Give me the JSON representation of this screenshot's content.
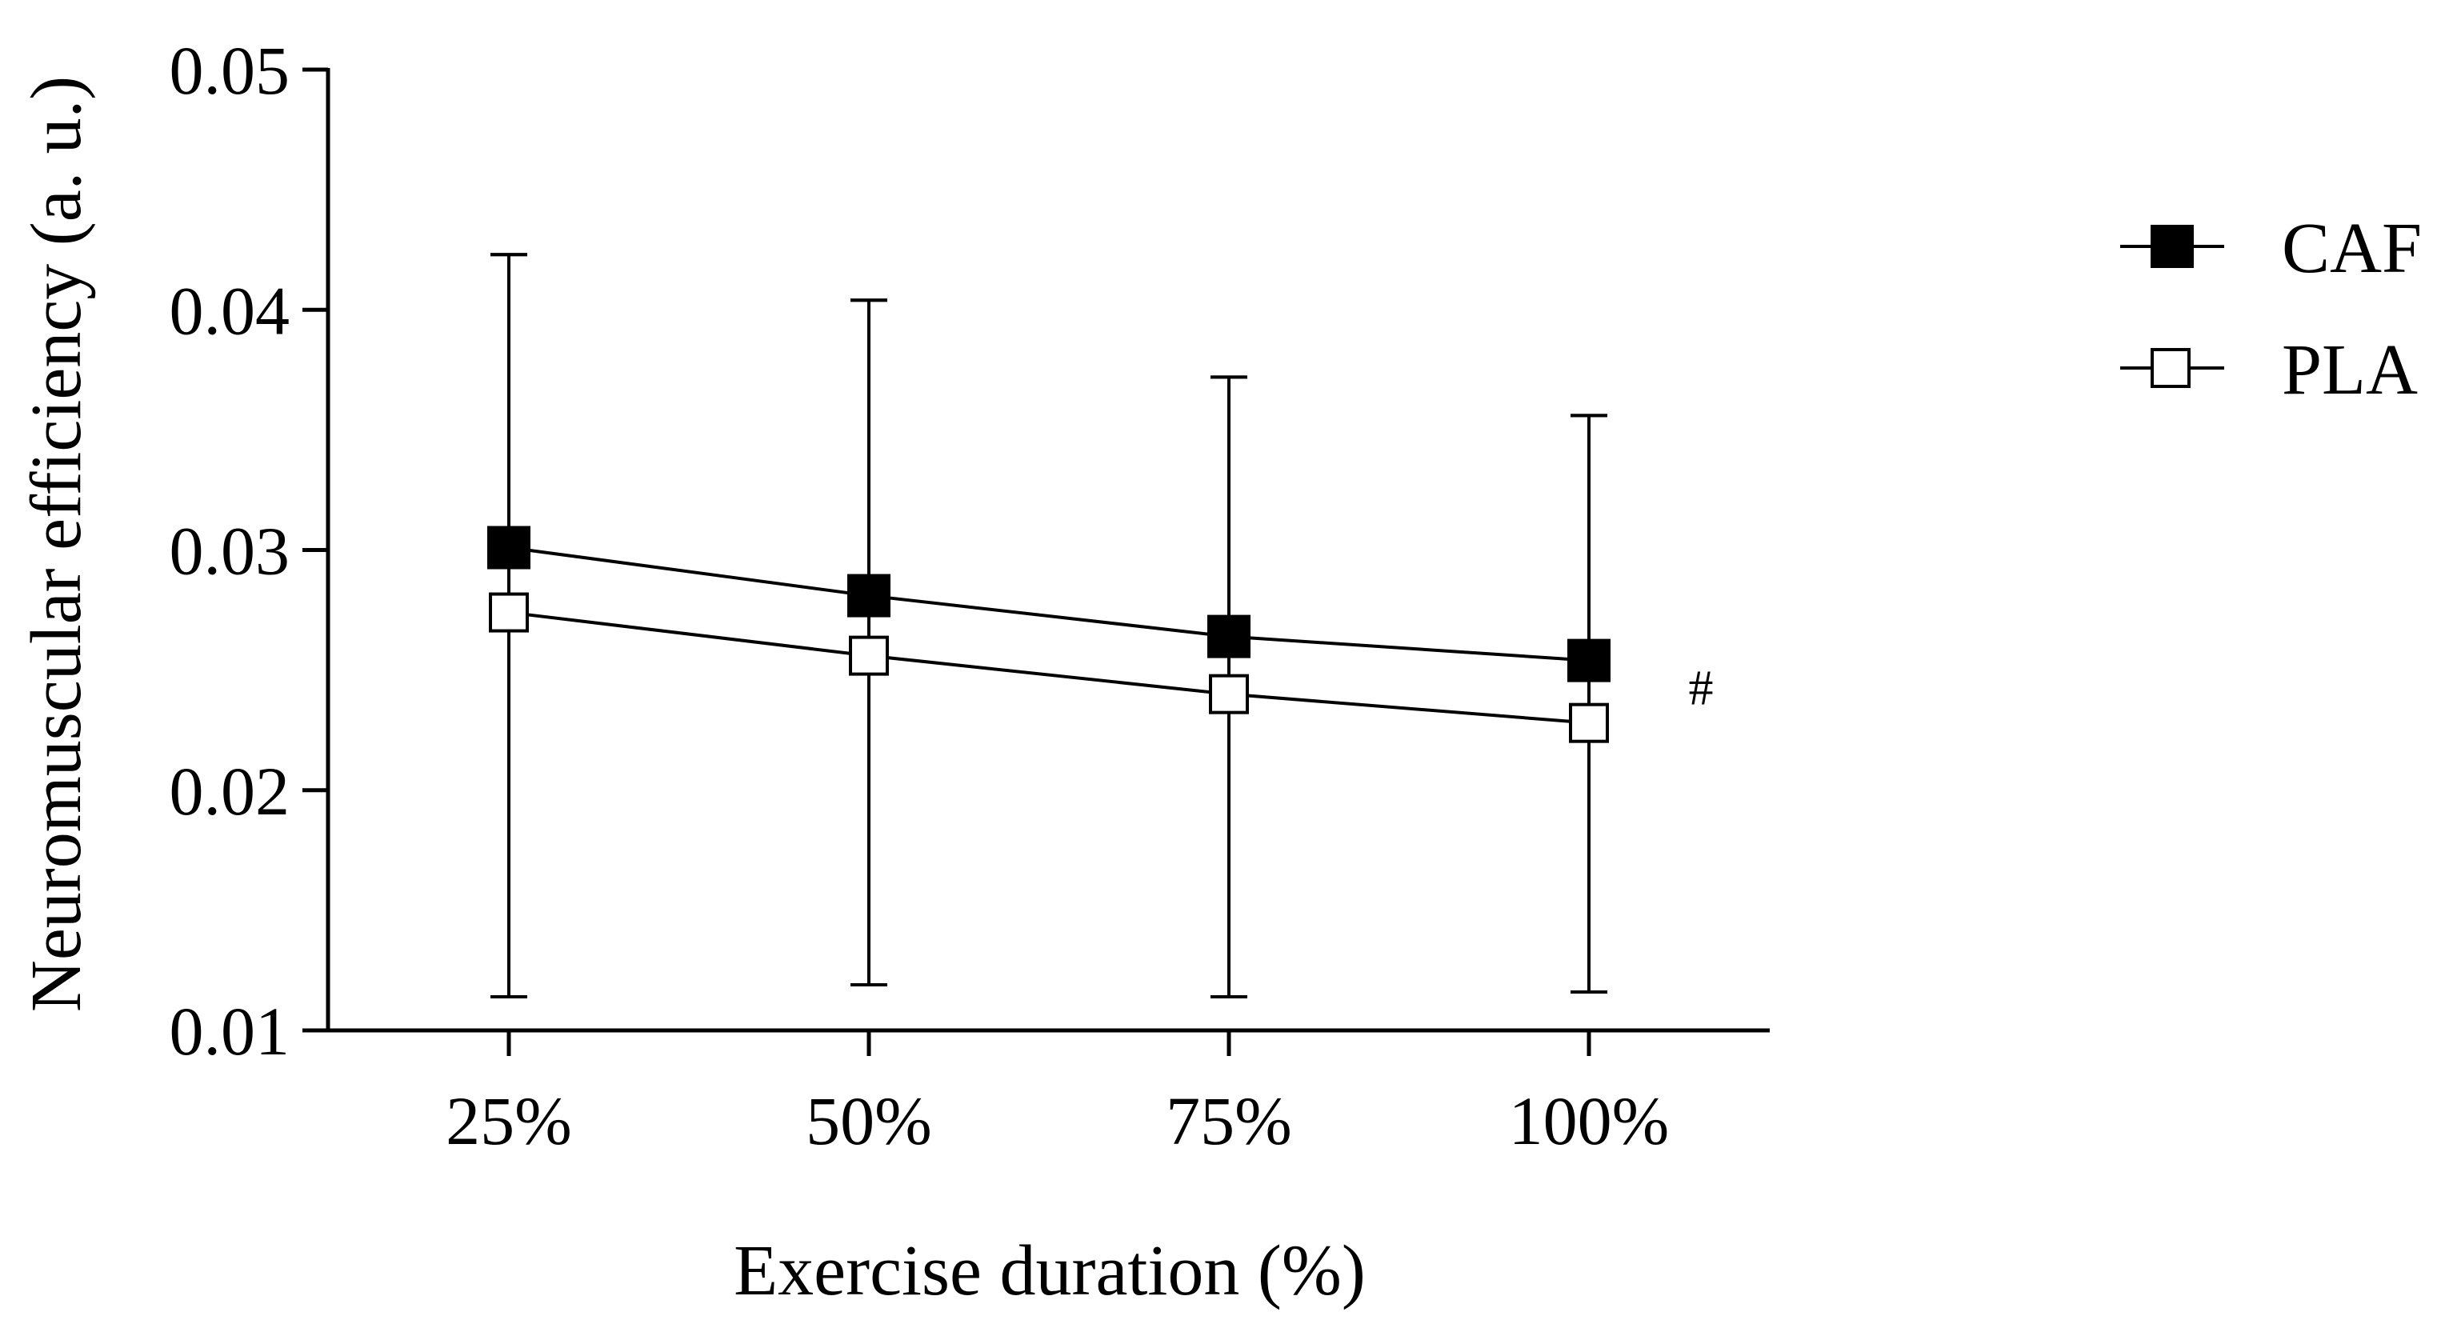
{
  "chart_data": {
    "type": "line",
    "title": "",
    "xlabel": "Exercise duration (%)",
    "ylabel": "Neuromuscular efficiency (a. u.)",
    "categories": [
      "25%",
      "50%",
      "75%",
      "100%"
    ],
    "ylim": [
      0.01,
      0.05
    ],
    "yticks": [
      0.01,
      0.02,
      0.03,
      0.04,
      0.05
    ],
    "ytick_labels": [
      "0.01",
      "0.02",
      "0.03",
      "0.04",
      "0.05"
    ],
    "grid": false,
    "legend_position": "right",
    "series": [
      {
        "name": "CAF",
        "marker": "filled-square",
        "values": [
          0.0301,
          0.0281,
          0.0264,
          0.0254
        ],
        "error_upper": [
          0.0423,
          0.0404,
          0.0372,
          0.0356
        ],
        "error_lower": [
          0.0114,
          0.0119,
          0.0114,
          0.0116
        ]
      },
      {
        "name": "PLA",
        "marker": "open-square",
        "values": [
          0.0274,
          0.0256,
          0.024,
          0.0228
        ],
        "error_upper": [
          0.0423,
          0.0404,
          0.0372,
          0.0356
        ],
        "error_lower": [
          0.0114,
          0.0119,
          0.0114,
          0.0116
        ]
      }
    ],
    "annotations": [
      {
        "text": "#",
        "category": "100%",
        "value": 0.0243
      }
    ]
  },
  "colors": {
    "ink": "#000000",
    "background": "#ffffff"
  }
}
